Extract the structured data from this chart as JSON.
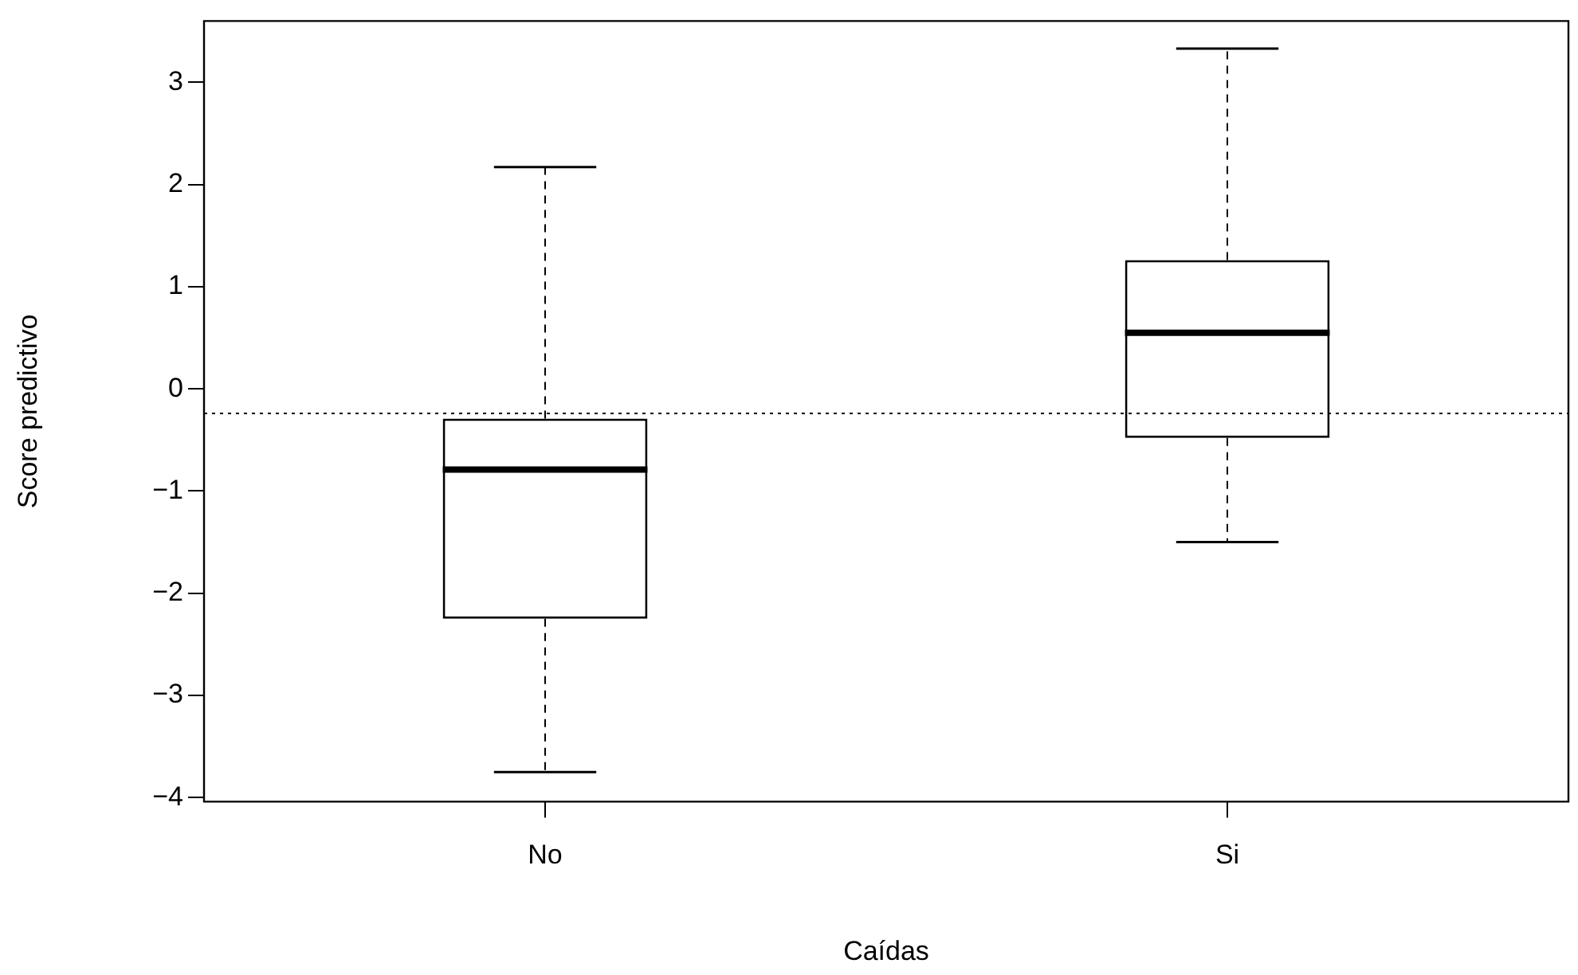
{
  "chart_data": {
    "type": "box",
    "xlabel": "Caídas",
    "ylabel": "Score predictivo",
    "categories": [
      "No",
      "Si"
    ],
    "boxes": [
      {
        "low": -3.75,
        "q1": -2.25,
        "median": -0.79,
        "q3": -0.29,
        "high": 2.17
      },
      {
        "low": -1.5,
        "q1": -0.48,
        "median": 0.55,
        "q3": 1.26,
        "high": 3.33
      }
    ],
    "ylim": [
      -4.04,
      3.6
    ],
    "yticks": [
      -4,
      -3,
      -2,
      -1,
      0,
      1,
      2,
      3
    ],
    "grid": false,
    "legend": false,
    "ref_lines": [
      {
        "axis": "y",
        "value": -0.24,
        "line_style": "dotted"
      }
    ]
  }
}
